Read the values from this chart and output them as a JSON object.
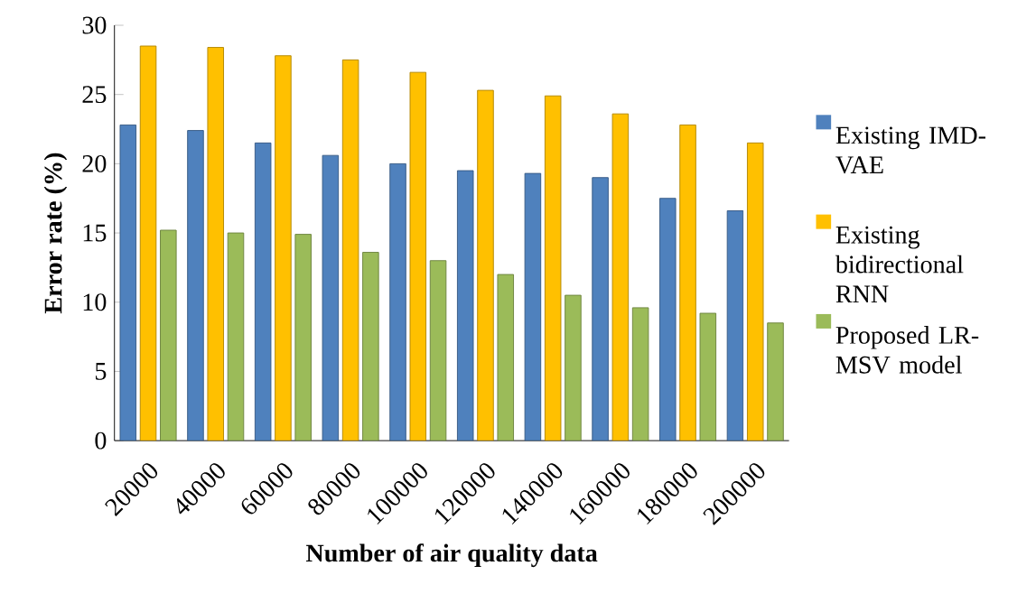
{
  "chart_data": {
    "type": "bar",
    "xlabel": "Number of air quality data",
    "ylabel": "Error rate (%)",
    "categories": [
      "20000",
      "40000",
      "60000",
      "80000",
      "100000",
      "120000",
      "140000",
      "160000",
      "180000",
      "200000"
    ],
    "series": [
      {
        "name": "Existing IMD-VAE",
        "color": "#4f81bd",
        "values": [
          22.8,
          22.4,
          21.5,
          20.6,
          20.0,
          19.5,
          19.3,
          19.0,
          17.5,
          16.6
        ]
      },
      {
        "name": "Existing bidirectional RNN",
        "color": "#ffc000",
        "values": [
          28.5,
          28.4,
          27.8,
          27.5,
          26.6,
          25.3,
          24.9,
          23.6,
          22.8,
          21.5
        ]
      },
      {
        "name": "Proposed LR-MSV model",
        "color": "#9bbb59",
        "values": [
          15.2,
          15.0,
          14.9,
          13.6,
          13.0,
          12.0,
          10.5,
          9.6,
          9.2,
          8.5
        ]
      }
    ],
    "ylim": [
      0,
      30
    ],
    "yticks": [
      0,
      5,
      10,
      15,
      20,
      25,
      30
    ],
    "grid": false,
    "legend": "right"
  }
}
